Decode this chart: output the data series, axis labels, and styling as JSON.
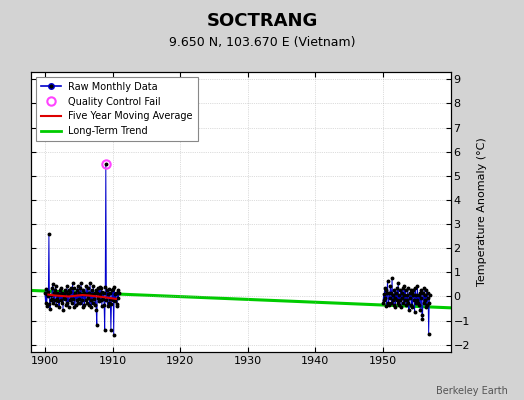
{
  "title": "SOCTRANG",
  "subtitle": "9.650 N, 103.670 E (Vietnam)",
  "ylabel": "Temperature Anomaly (°C)",
  "credit": "Berkeley Earth",
  "bg_color": "#d3d3d3",
  "plot_bg_color": "#ffffff",
  "xlim": [
    1898,
    1960
  ],
  "ylim": [
    -2.3,
    9.3
  ],
  "yticks": [
    -2,
    -1,
    0,
    1,
    2,
    3,
    4,
    5,
    6,
    7,
    8,
    9
  ],
  "xticks": [
    1900,
    1910,
    1920,
    1930,
    1940,
    1950
  ],
  "raw_years_early": [
    1900.0,
    1900.083,
    1900.167,
    1900.25,
    1900.333,
    1900.417,
    1900.5,
    1900.583,
    1900.667,
    1900.75,
    1900.833,
    1900.917,
    1901.0,
    1901.083,
    1901.167,
    1901.25,
    1901.333,
    1901.417,
    1901.5,
    1901.583,
    1901.667,
    1901.75,
    1901.833,
    1901.917,
    1902.0,
    1902.083,
    1902.167,
    1902.25,
    1902.333,
    1902.417,
    1902.5,
    1902.583,
    1902.667,
    1902.75,
    1902.833,
    1902.917,
    1903.0,
    1903.083,
    1903.167,
    1903.25,
    1903.333,
    1903.417,
    1903.5,
    1903.583,
    1903.667,
    1903.75,
    1903.833,
    1903.917,
    1904.0,
    1904.083,
    1904.167,
    1904.25,
    1904.333,
    1904.417,
    1904.5,
    1904.583,
    1904.667,
    1904.75,
    1904.833,
    1904.917,
    1905.0,
    1905.083,
    1905.167,
    1905.25,
    1905.333,
    1905.417,
    1905.5,
    1905.583,
    1905.667,
    1905.75,
    1905.833,
    1905.917,
    1906.0,
    1906.083,
    1906.167,
    1906.25,
    1906.333,
    1906.417,
    1906.5,
    1906.583,
    1906.667,
    1906.75,
    1906.833,
    1906.917,
    1907.0,
    1907.083,
    1907.167,
    1907.25,
    1907.333,
    1907.417,
    1907.5,
    1907.583,
    1907.667,
    1907.75,
    1907.833,
    1907.917,
    1908.0,
    1908.083,
    1908.167,
    1908.25,
    1908.333,
    1908.417,
    1908.5,
    1908.583,
    1908.667,
    1908.75,
    1908.833,
    1908.917,
    1909.0,
    1909.083,
    1909.167,
    1909.25,
    1909.333,
    1909.417,
    1909.5,
    1909.583,
    1909.667,
    1909.75,
    1909.833,
    1909.917,
    1910.0,
    1910.083,
    1910.167,
    1910.25,
    1910.333,
    1910.417,
    1910.5,
    1910.583,
    1910.667,
    1910.75,
    1910.833,
    1910.917
  ],
  "raw_vals_early": [
    0.15,
    -0.25,
    0.3,
    -0.4,
    0.1,
    0.2,
    0.0,
    2.6,
    -0.3,
    -0.5,
    -0.15,
    0.05,
    -0.1,
    0.35,
    0.5,
    -0.25,
    0.15,
    -0.15,
    0.25,
    0.45,
    -0.35,
    -0.1,
    0.15,
    -0.2,
    0.05,
    -0.45,
    0.25,
    0.1,
    -0.15,
    0.35,
    -0.25,
    0.15,
    -0.55,
    0.1,
    -0.05,
    0.25,
    -0.1,
    0.2,
    -0.35,
    0.45,
    -0.25,
    0.1,
    -0.45,
    0.25,
    0.2,
    -0.15,
    0.35,
    -0.1,
    -0.25,
    0.55,
    -0.1,
    0.35,
    -0.45,
    0.15,
    0.1,
    -0.35,
    0.25,
    -0.15,
    0.45,
    -0.25,
    0.15,
    -0.1,
    0.35,
    -0.25,
    0.55,
    -0.15,
    0.1,
    -0.45,
    0.25,
    0.15,
    -0.35,
    0.1,
    -0.15,
    0.45,
    0.1,
    -0.25,
    0.35,
    -0.05,
    0.15,
    -0.35,
    0.55,
    -0.15,
    -0.45,
    0.25,
    0.1,
    -0.25,
    0.45,
    -0.1,
    0.15,
    -0.35,
    0.25,
    -0.55,
    -1.2,
    0.15,
    -0.05,
    0.35,
    -0.2,
    0.4,
    0.1,
    -0.15,
    0.35,
    -0.4,
    0.2,
    -0.1,
    0.15,
    -0.35,
    -1.4,
    0.4,
    5.5,
    -0.15,
    0.25,
    -0.4,
    0.1,
    0.3,
    -0.25,
    0.15,
    -0.1,
    -1.4,
    -0.3,
    0.25,
    -0.15,
    0.3,
    -1.6,
    0.4,
    -0.2,
    0.1,
    0.15,
    -0.3,
    -0.4,
    0.25,
    -0.05,
    0.15
  ],
  "raw_years_late": [
    1950.0,
    1950.083,
    1950.167,
    1950.25,
    1950.333,
    1950.417,
    1950.5,
    1950.583,
    1950.667,
    1950.75,
    1950.833,
    1950.917,
    1951.0,
    1951.083,
    1951.167,
    1951.25,
    1951.333,
    1951.417,
    1951.5,
    1951.583,
    1951.667,
    1951.75,
    1951.833,
    1951.917,
    1952.0,
    1952.083,
    1952.167,
    1952.25,
    1952.333,
    1952.417,
    1952.5,
    1952.583,
    1952.667,
    1952.75,
    1952.833,
    1952.917,
    1953.0,
    1953.083,
    1953.167,
    1953.25,
    1953.333,
    1953.417,
    1953.5,
    1953.583,
    1953.667,
    1953.75,
    1953.833,
    1953.917,
    1954.0,
    1954.083,
    1954.167,
    1954.25,
    1954.333,
    1954.417,
    1954.5,
    1954.583,
    1954.667,
    1954.75,
    1954.833,
    1954.917,
    1955.0,
    1955.083,
    1955.167,
    1955.25,
    1955.333,
    1955.417,
    1955.5,
    1955.583,
    1955.667,
    1955.75,
    1955.833,
    1955.917,
    1956.0,
    1956.083,
    1956.167,
    1956.25,
    1956.333,
    1956.417,
    1956.5,
    1956.583,
    1956.667,
    1956.75,
    1956.833,
    1956.917
  ],
  "raw_vals_late": [
    -0.25,
    0.1,
    -0.15,
    0.35,
    -0.05,
    0.25,
    -0.4,
    0.15,
    0.65,
    -0.25,
    -0.35,
    0.15,
    -0.05,
    0.45,
    0.15,
    -0.25,
    0.75,
    -0.15,
    0.05,
    -0.35,
    0.25,
    -0.05,
    -0.45,
    0.15,
    -0.15,
    0.35,
    -0.25,
    0.55,
    -0.35,
    0.05,
    -0.15,
    0.25,
    -0.45,
    0.15,
    -0.05,
    0.35,
    -0.25,
    0.05,
    0.45,
    -0.15,
    0.25,
    -0.35,
    0.05,
    -0.15,
    0.35,
    -0.25,
    -0.55,
    0.15,
    -0.05,
    0.25,
    -0.35,
    0.15,
    -0.45,
    0.05,
    0.25,
    -0.15,
    -0.65,
    0.35,
    -0.25,
    0.05,
    -0.15,
    0.45,
    -0.25,
    0.05,
    -0.35,
    0.15,
    -0.55,
    0.25,
    -0.05,
    -0.75,
    -0.95,
    0.15,
    -0.25,
    0.35,
    -0.15,
    0.05,
    -0.45,
    0.25,
    -0.35,
    0.15,
    -0.05,
    -1.55,
    -0.25,
    0.05
  ],
  "qc_fail_year": 1909.0,
  "qc_fail_value": 5.5,
  "ma_years": [
    1900.5,
    1901.5,
    1902.5,
    1903.5,
    1904.5,
    1905.5,
    1906.5,
    1907.5,
    1908.5,
    1909.5,
    1910.5
  ],
  "ma_values": [
    0.08,
    0.04,
    0.02,
    0.0,
    0.03,
    0.06,
    0.04,
    0.01,
    -0.02,
    -0.06,
    -0.1
  ],
  "trend_x": [
    1898,
    1960
  ],
  "trend_y": [
    0.25,
    -0.47
  ],
  "line_color": "#0000cc",
  "marker_color": "#000000",
  "qc_color": "#ff44ff",
  "ma_color": "#dd0000",
  "trend_color": "#00cc00",
  "title_fontsize": 13,
  "subtitle_fontsize": 9,
  "tick_labelsize": 8
}
